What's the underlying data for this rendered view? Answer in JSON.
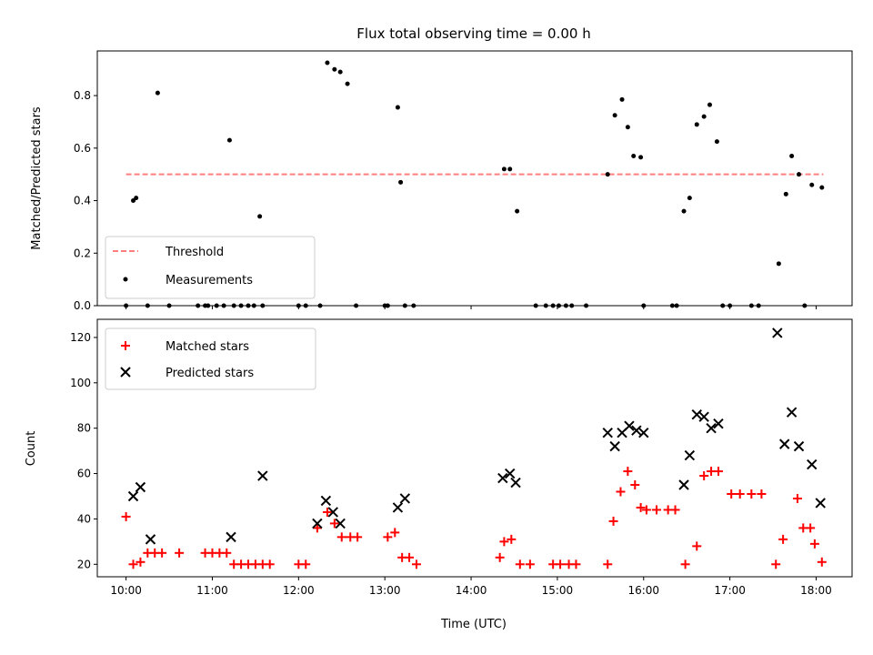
{
  "chart_data": [
    {
      "type": "scatter",
      "title": "Flux total observing time = 0.00 h",
      "ylabel": "Matched/Predicted stars",
      "xlim": [
        "09:40",
        "18:25"
      ],
      "ylim": [
        0,
        0.97
      ],
      "yticks": [
        0.0,
        0.2,
        0.4,
        0.6,
        0.8
      ],
      "ytick_labels": [
        "0.0",
        "0.2",
        "0.4",
        "0.6",
        "0.8"
      ],
      "grid": false,
      "legend": "lower-left",
      "threshold": {
        "name": "Threshold",
        "value": 0.5,
        "x_start": "10:00",
        "x_end": "18:05",
        "color": "#ff7f7f"
      },
      "series": [
        {
          "name": "Measurements",
          "color": "#000000",
          "x": [
            "10:05",
            "10:07",
            "10:22",
            "11:12",
            "11:33",
            "12:20",
            "12:25",
            "12:29",
            "12:34",
            "13:09",
            "13:11",
            "14:23",
            "14:27",
            "14:32",
            "15:35",
            "15:40",
            "15:45",
            "15:49",
            "15:53",
            "15:58",
            "16:28",
            "16:32",
            "16:37",
            "16:42",
            "16:46",
            "16:51",
            "17:34",
            "17:39",
            "17:43",
            "17:48",
            "17:57",
            "18:04",
            "10:00",
            "10:15",
            "10:30",
            "10:50",
            "10:55",
            "10:57",
            "11:03",
            "11:08",
            "11:15",
            "11:20",
            "11:25",
            "11:29",
            "11:35",
            "12:00",
            "12:05",
            "12:15",
            "12:40",
            "13:00",
            "13:02",
            "13:14",
            "13:20",
            "14:45",
            "14:52",
            "14:57",
            "15:01",
            "15:06",
            "15:10",
            "15:20",
            "16:00",
            "16:20",
            "16:23",
            "16:55",
            "17:00",
            "17:15",
            "17:20",
            "17:52"
          ],
          "y": [
            0.4,
            0.41,
            0.81,
            0.63,
            0.34,
            0.925,
            0.9,
            0.89,
            0.845,
            0.755,
            0.47,
            0.52,
            0.52,
            0.36,
            0.5,
            0.725,
            0.785,
            0.68,
            0.57,
            0.565,
            0.36,
            0.41,
            0.69,
            0.72,
            0.765,
            0.625,
            0.16,
            0.425,
            0.57,
            0.5,
            0.46,
            0.45,
            0,
            0,
            0,
            0,
            0,
            0,
            0,
            0,
            0,
            0,
            0,
            0,
            0,
            0,
            0,
            0,
            0,
            0,
            0,
            0,
            0,
            0,
            0,
            0,
            0,
            0,
            0,
            0,
            0,
            0,
            0,
            0,
            0,
            0,
            0,
            0
          ]
        }
      ]
    },
    {
      "type": "scatter",
      "xlabel": "Time (UTC)",
      "ylabel": "Count",
      "xlim": [
        "09:40",
        "18:25"
      ],
      "ylim": [
        14.5,
        128
      ],
      "xticks": [
        "10:00",
        "11:00",
        "12:00",
        "13:00",
        "14:00",
        "15:00",
        "16:00",
        "17:00",
        "18:00"
      ],
      "yticks": [
        20,
        40,
        60,
        80,
        100,
        120
      ],
      "ytick_labels": [
        "20",
        "40",
        "60",
        "80",
        "100",
        "120"
      ],
      "grid": false,
      "legend": "upper-left",
      "series": [
        {
          "name": "Matched stars",
          "marker": "plus",
          "color": "#ff0000",
          "x": [
            "10:00",
            "10:05",
            "10:10",
            "10:15",
            "10:20",
            "10:25",
            "10:37",
            "10:55",
            "11:00",
            "11:05",
            "11:10",
            "11:15",
            "11:20",
            "11:25",
            "11:30",
            "11:35",
            "11:40",
            "12:00",
            "12:05",
            "12:13",
            "12:20",
            "12:25",
            "12:30",
            "12:36",
            "12:41",
            "13:02",
            "13:07",
            "13:12",
            "13:17",
            "13:22",
            "14:20",
            "14:23",
            "14:28",
            "14:34",
            "14:41",
            "14:57",
            "15:02",
            "15:08",
            "15:13",
            "15:35",
            "15:39",
            "15:44",
            "15:49",
            "15:54",
            "15:58",
            "16:02",
            "16:09",
            "16:17",
            "16:22",
            "16:29",
            "16:37",
            "16:42",
            "16:47",
            "16:52",
            "17:01",
            "17:07",
            "17:15",
            "17:22",
            "17:32",
            "17:37",
            "17:47",
            "17:51",
            "17:56",
            "17:59",
            "18:04"
          ],
          "y": [
            41,
            20,
            21,
            25,
            25,
            25,
            25,
            25,
            25,
            25,
            25,
            20,
            20,
            20,
            20,
            20,
            20,
            20,
            20,
            36,
            43,
            38,
            32,
            32,
            32,
            32,
            34,
            23,
            23,
            20,
            23,
            30,
            31,
            20,
            20,
            20,
            20,
            20,
            20,
            20,
            39,
            52,
            61,
            55,
            45,
            44,
            44,
            44,
            44,
            20,
            28,
            59,
            61,
            61,
            51,
            51,
            51,
            51,
            20,
            31,
            49,
            36,
            36,
            29,
            21
          ]
        },
        {
          "name": "Predicted stars",
          "marker": "x",
          "color": "#000000",
          "x": [
            "10:05",
            "10:10",
            "10:17",
            "11:13",
            "11:35",
            "12:13",
            "12:19",
            "12:24",
            "12:29",
            "13:09",
            "13:14",
            "14:22",
            "14:27",
            "14:31",
            "15:35",
            "15:40",
            "15:45",
            "15:50",
            "15:55",
            "16:00",
            "16:28",
            "16:32",
            "16:37",
            "16:42",
            "16:47",
            "16:52",
            "17:33",
            "17:38",
            "17:43",
            "17:48",
            "17:57",
            "18:03"
          ],
          "y": [
            50,
            54,
            31,
            32,
            59,
            38,
            48,
            43,
            38,
            45,
            49,
            58,
            60,
            56,
            78,
            72,
            78,
            81,
            79,
            78,
            55,
            68,
            86,
            85,
            80,
            82,
            122,
            73,
            87,
            72,
            64,
            47
          ]
        }
      ]
    }
  ]
}
